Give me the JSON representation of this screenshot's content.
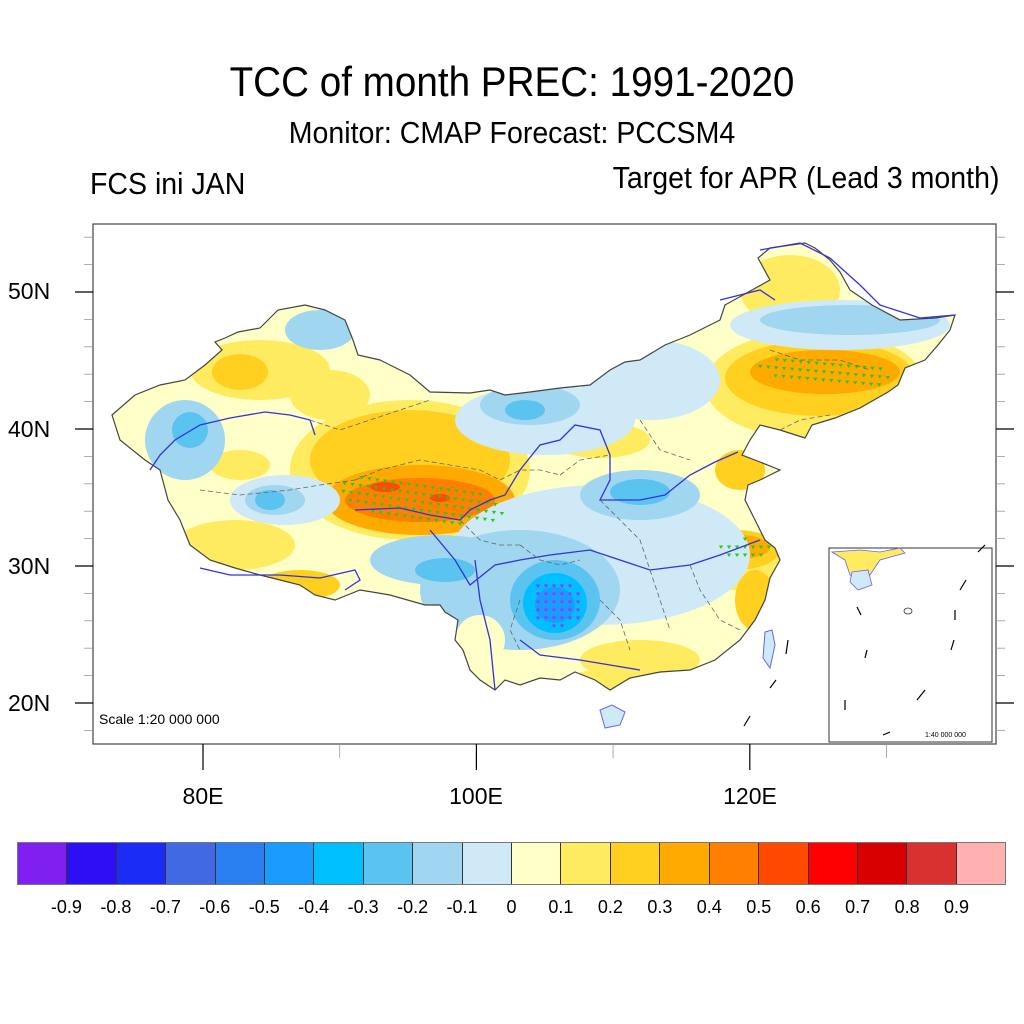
{
  "title": "TCC of month PREC: 1991-2020",
  "subtitle": "Monitor: CMAP   Forecast: PCCSM4",
  "left_string": "FCS ini JAN",
  "right_string": "Target for APR (Lead 3 month)",
  "map": {
    "region": "China",
    "projection_scale_label": "Scale 1:20 000 000",
    "inset_scale_label": "1:40 000 000",
    "inset_region": "South China Sea",
    "lat_range": [
      17,
      55
    ],
    "lon_range": [
      72,
      136
    ],
    "y_ticks": [
      "50N",
      "40N",
      "30N",
      "20N"
    ],
    "x_ticks": [
      "80E",
      "100E",
      "120E"
    ],
    "stippling": {
      "meaning": "significant correlation",
      "positive_marker_color": "#22cc22",
      "negative_marker_color": "#9933ff",
      "regions": [
        {
          "name": "Qinghai-Tibet north (Qaidam/Qinghai)",
          "sign": "positive",
          "max_value": 0.6
        },
        {
          "name": "Northeast China (Jilin/Heilongjiang south)",
          "sign": "positive",
          "max_value": 0.5
        },
        {
          "name": "Lower Yangtze (Anhui/Jiangsu)",
          "sign": "positive",
          "max_value": 0.5
        },
        {
          "name": "Guizhou / Chongqing",
          "sign": "negative",
          "min_value": -0.5
        }
      ]
    },
    "boundary_colors": {
      "coast_river": "#3333dd",
      "border": "#444444",
      "province": "#666666"
    }
  },
  "chart_data": {
    "type": "heatmap",
    "title": "TCC of month PREC: 1991-2020",
    "subtitle": "Monitor: CMAP   Forecast: PCCSM4",
    "left_label": "FCS ini JAN",
    "right_label": "Target for APR (Lead 3 month)",
    "xlabel": "",
    "ylabel": "",
    "x_ticks": [
      "80E",
      "100E",
      "120E"
    ],
    "y_ticks": [
      "50N",
      "40N",
      "30N",
      "20N"
    ],
    "colorbar": {
      "levels": [
        -0.9,
        -0.8,
        -0.7,
        -0.6,
        -0.5,
        -0.4,
        -0.3,
        -0.2,
        -0.1,
        0,
        0.1,
        0.2,
        0.3,
        0.4,
        0.5,
        0.6,
        0.7,
        0.8,
        0.9
      ],
      "labels": [
        "-0.9",
        "-0.8",
        "-0.7",
        "-0.6",
        "-0.5",
        "-0.4",
        "-0.3",
        "-0.2",
        "-0.1",
        "0",
        "0.1",
        "0.2",
        "0.3",
        "0.4",
        "0.5",
        "0.6",
        "0.7",
        "0.8",
        "0.9"
      ],
      "colors": [
        "#8020f0",
        "#2e0ef5",
        "#1a2cf5",
        "#4169e1",
        "#2a7ff0",
        "#1a9cff",
        "#00bfff",
        "#5bc3f0",
        "#a0d6f0",
        "#cfe9f7",
        "#ffffc8",
        "#ffeb60",
        "#ffd020",
        "#ffaa00",
        "#ff8000",
        "#ff4a00",
        "#ff0000",
        "#d80000",
        "#d93030",
        "#ffb0b0"
      ],
      "placement": "bottom"
    },
    "value_range": [
      -0.6,
      0.6
    ]
  }
}
